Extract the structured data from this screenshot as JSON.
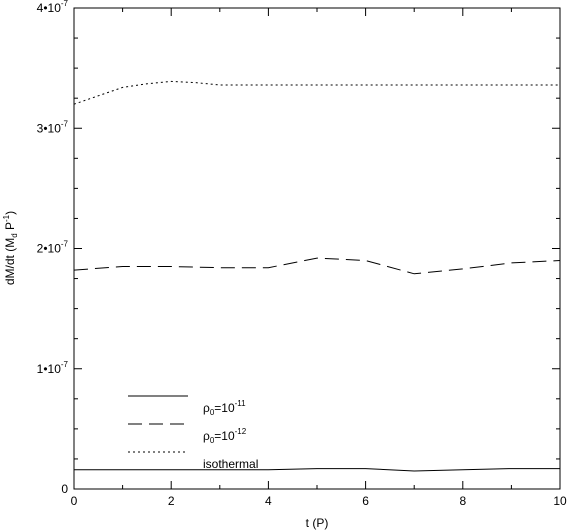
{
  "chart_data": {
    "type": "line",
    "xlabel": "t (P)",
    "ylabel": "dM/dt (M",
    "ylabel_sub": "d",
    "ylabel_tail": " P",
    "ylabel_sup": "-1",
    "ylabel_end": ")",
    "xlim": [
      0,
      10
    ],
    "ylim": [
      0,
      4e-07
    ],
    "xticks": [
      {
        "value": 0,
        "label": "0"
      },
      {
        "value": 2,
        "label": "2"
      },
      {
        "value": 4,
        "label": "4"
      },
      {
        "value": 6,
        "label": "6"
      },
      {
        "value": 8,
        "label": "8"
      },
      {
        "value": 10,
        "label": "10"
      }
    ],
    "yticks": [
      {
        "value": 0,
        "label": "0",
        "mant": "",
        "exp": ""
      },
      {
        "value": 1e-07,
        "label": "1•10-7",
        "mant": "1•10",
        "exp": "-7"
      },
      {
        "value": 2e-07,
        "label": "2•10-7",
        "mant": "2•10",
        "exp": "-7"
      },
      {
        "value": 3e-07,
        "label": "3•10-7",
        "mant": "3•10",
        "exp": "-7"
      },
      {
        "value": 4e-07,
        "label": "4•10-7",
        "mant": "4•10",
        "exp": "-7"
      }
    ],
    "grid": false,
    "legend_position": "bottom-left",
    "series": [
      {
        "name": "ρ0=10-11",
        "legend_base": "ρ",
        "legend_sub": "0",
        "legend_mid": "=10",
        "legend_sup": "-11",
        "style": "solid",
        "x": [
          0,
          1,
          2,
          3,
          4,
          5,
          6,
          7,
          8,
          9,
          10
        ],
        "y": [
          1.6e-08,
          1.6e-08,
          1.6e-08,
          1.6e-08,
          1.6e-08,
          1.7e-08,
          1.7e-08,
          1.5e-08,
          1.6e-08,
          1.7e-08,
          1.7e-08
        ]
      },
      {
        "name": "ρ0=10-12",
        "legend_base": "ρ",
        "legend_sub": "0",
        "legend_mid": "=10",
        "legend_sup": "-12",
        "style": "dashed",
        "x": [
          0,
          1,
          2,
          3,
          4,
          5,
          6,
          7,
          8,
          9,
          10
        ],
        "y": [
          1.82e-07,
          1.85e-07,
          1.85e-07,
          1.84e-07,
          1.84e-07,
          1.92e-07,
          1.9e-07,
          1.79e-07,
          1.83e-07,
          1.88e-07,
          1.9e-07
        ]
      },
      {
        "name": "isothermal",
        "legend_base": "isothermal",
        "legend_sub": "",
        "legend_mid": "",
        "legend_sup": "",
        "style": "dotted",
        "x": [
          0,
          0.5,
          1,
          1.5,
          2,
          2.5,
          3,
          4,
          5,
          6,
          7,
          8,
          9,
          10
        ],
        "y": [
          3.2e-07,
          3.27e-07,
          3.34e-07,
          3.37e-07,
          3.39e-07,
          3.38e-07,
          3.36e-07,
          3.36e-07,
          3.36e-07,
          3.36e-07,
          3.36e-07,
          3.36e-07,
          3.36e-07,
          3.36e-07
        ]
      }
    ]
  }
}
